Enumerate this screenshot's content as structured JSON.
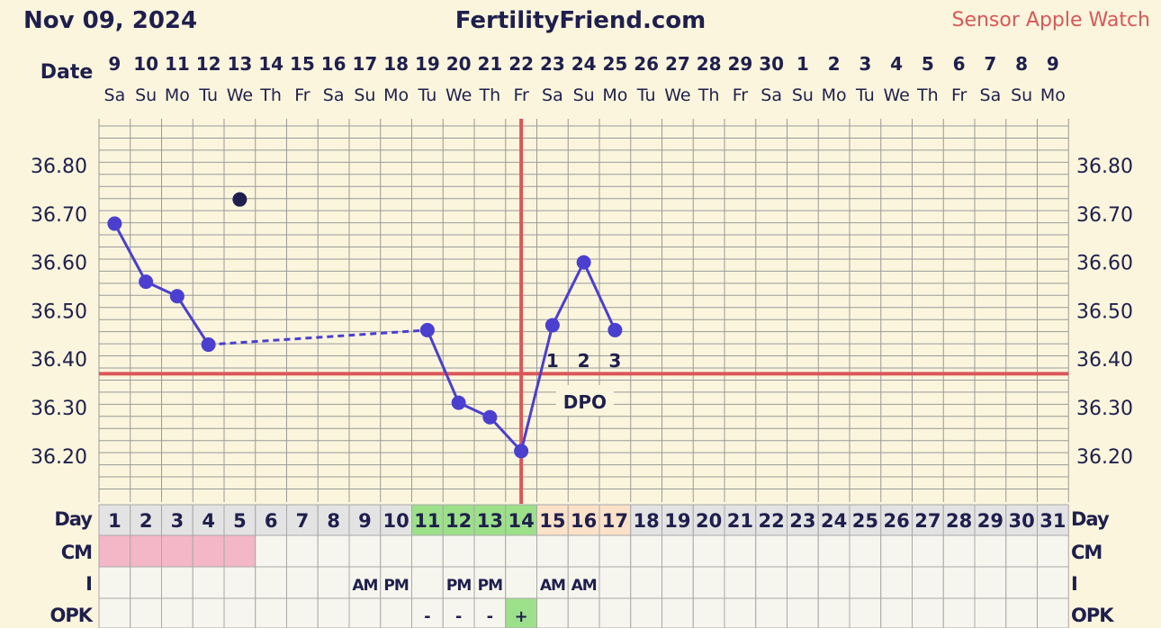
{
  "header": {
    "date": "Nov 09, 2024",
    "site": "FertilityFriend.com",
    "sensor": "Sensor Apple Watch"
  },
  "labels": {
    "date_row": "Date",
    "day_row": "Day",
    "cm_row": "CM",
    "i_row": "I",
    "opk_row": "OPK",
    "dpo": "DPO"
  },
  "colors": {
    "background": "#faf5dc",
    "line": "#4b3fcf",
    "coverline": "#d9575a",
    "cm_pink": "#f4b7c8",
    "fertile_green": "#9de08a",
    "luteal_peach": "#fbe1c8",
    "opk_positive": "#9de08a",
    "text": "#1f1f4d"
  },
  "chart_data": {
    "type": "line",
    "title": "",
    "xlabel": "",
    "ylabel": "",
    "ylim": [
      36.1,
      36.9
    ],
    "yticks": [
      36.2,
      36.3,
      36.4,
      36.5,
      36.6,
      36.7,
      36.8
    ],
    "dates": [
      "9",
      "10",
      "11",
      "12",
      "13",
      "14",
      "15",
      "16",
      "17",
      "18",
      "19",
      "20",
      "21",
      "22",
      "23",
      "24",
      "25",
      "26",
      "27",
      "28",
      "29",
      "30",
      "1",
      "2",
      "3",
      "4",
      "5",
      "6",
      "7",
      "8",
      "9"
    ],
    "weekdays": [
      "Sa",
      "Su",
      "Mo",
      "Tu",
      "We",
      "Th",
      "Fr",
      "Sa",
      "Su",
      "Mo",
      "Tu",
      "We",
      "Th",
      "Fr",
      "Sa",
      "Su",
      "Mo",
      "Tu",
      "We",
      "Th",
      "Fr",
      "Sa",
      "Su",
      "Mo",
      "Tu",
      "We",
      "Th",
      "Fr",
      "Sa",
      "Su",
      "Mo"
    ],
    "cycle_days": [
      "1",
      "2",
      "3",
      "4",
      "5",
      "6",
      "7",
      "8",
      "9",
      "10",
      "11",
      "12",
      "13",
      "14",
      "15",
      "16",
      "17",
      "18",
      "19",
      "20",
      "21",
      "22",
      "23",
      "24",
      "25",
      "26",
      "27",
      "28",
      "29",
      "30",
      "31"
    ],
    "temperatures": [
      {
        "day": 1,
        "temp": 36.68
      },
      {
        "day": 2,
        "temp": 36.56
      },
      {
        "day": 3,
        "temp": 36.53
      },
      {
        "day": 4,
        "temp": 36.43
      },
      {
        "day": 11,
        "temp": 36.46
      },
      {
        "day": 12,
        "temp": 36.31
      },
      {
        "day": 13,
        "temp": 36.28
      },
      {
        "day": 14,
        "temp": 36.21
      },
      {
        "day": 15,
        "temp": 36.47
      },
      {
        "day": 16,
        "temp": 36.6
      },
      {
        "day": 17,
        "temp": 36.46
      }
    ],
    "discarded": [
      {
        "day": 5,
        "temp": 36.73
      }
    ],
    "coverline": 36.37,
    "ovulation_day": 14,
    "dpo": [
      {
        "day": 15,
        "label": "1"
      },
      {
        "day": 16,
        "label": "2"
      },
      {
        "day": 17,
        "label": "3"
      }
    ],
    "cm_days": [
      1,
      2,
      3,
      4,
      5
    ],
    "fertile_days": [
      11,
      12,
      13,
      14
    ],
    "luteal_days": [
      15,
      16,
      17
    ],
    "intercourse": [
      {
        "day": 9,
        "label": "AM"
      },
      {
        "day": 10,
        "label": "PM"
      },
      {
        "day": 12,
        "label": "PM"
      },
      {
        "day": 13,
        "label": "PM"
      },
      {
        "day": 15,
        "label": "AM"
      },
      {
        "day": 16,
        "label": "AM"
      }
    ],
    "opk": [
      {
        "day": 11,
        "label": "-"
      },
      {
        "day": 12,
        "label": "-"
      },
      {
        "day": 13,
        "label": "-"
      },
      {
        "day": 14,
        "label": "+"
      }
    ],
    "grid": true
  }
}
